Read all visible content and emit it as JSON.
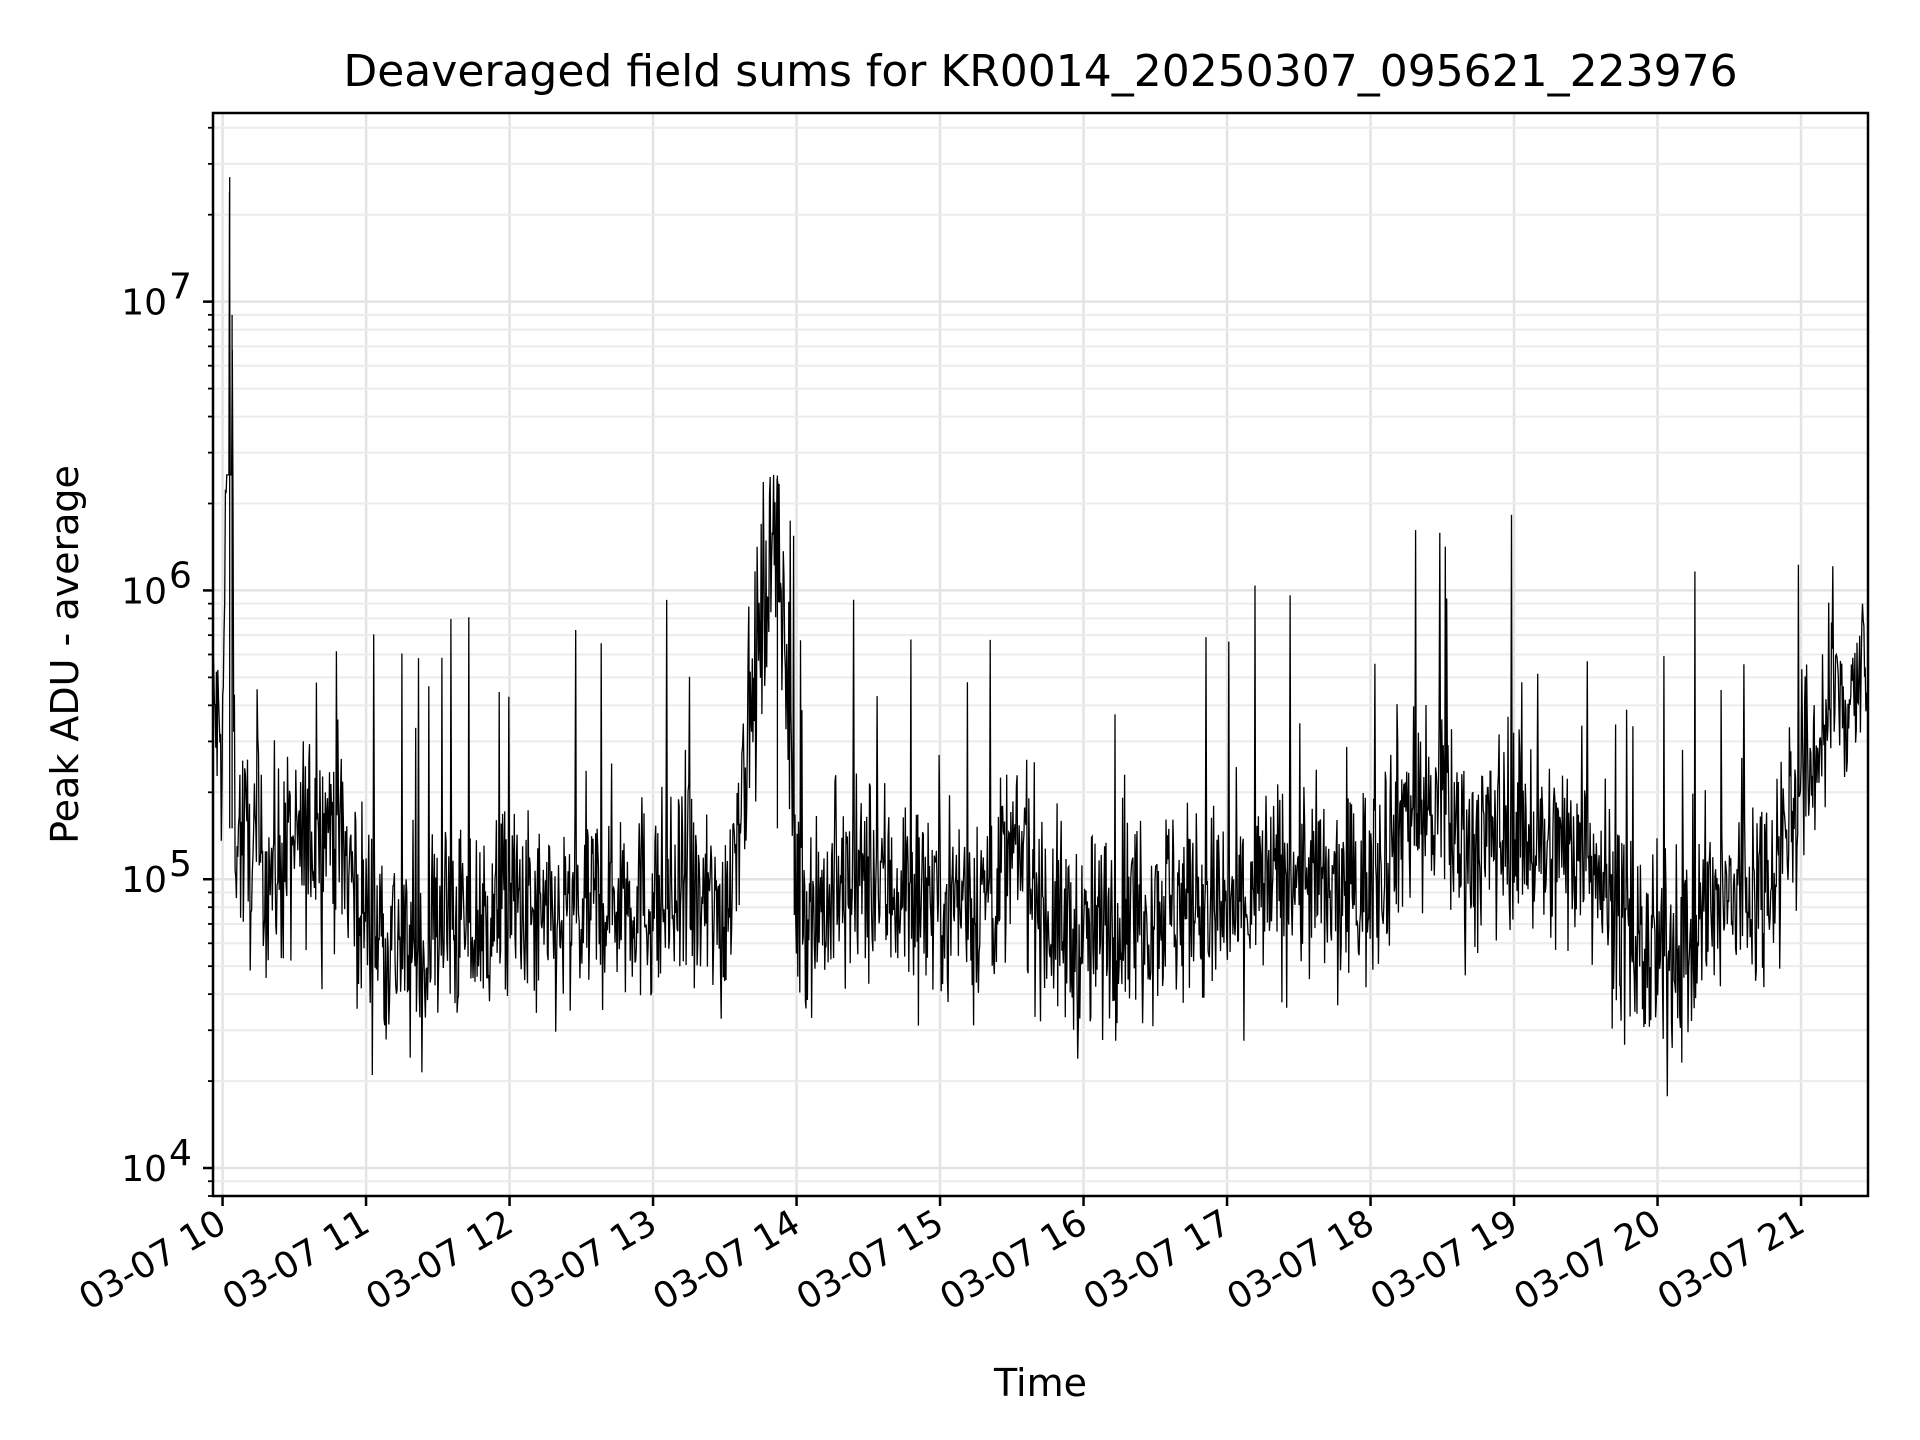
{
  "chart_data": {
    "type": "line",
    "title": "Deaveraged field sums for KR0014_20250307_095621_223976",
    "xlabel": "Time",
    "ylabel": "Peak ADU - average",
    "y_scale": "log",
    "ylim": [
      8000,
      45000000
    ],
    "xlim": [
      "2025-03-07 09:56",
      "2025-03-07 21:28"
    ],
    "x_ticks": [
      "2025-03-07 10:00",
      "2025-03-07 11:00",
      "2025-03-07 12:00",
      "2025-03-07 13:00",
      "2025-03-07 14:00",
      "2025-03-07 15:00",
      "2025-03-07 16:00",
      "2025-03-07 17:00",
      "2025-03-07 18:00",
      "2025-03-07 19:00",
      "2025-03-07 20:00",
      "2025-03-07 21:00"
    ],
    "x_tick_labels": [
      "03-07 10",
      "03-07 11",
      "03-07 12",
      "03-07 13",
      "03-07 14",
      "03-07 15",
      "03-07 16",
      "03-07 17",
      "03-07 18",
      "03-07 19",
      "03-07 20",
      "03-07 21"
    ],
    "y_ticks": [
      10000,
      100000,
      1000000,
      10000000
    ],
    "y_tick_labels": [
      {
        "base": "10",
        "exp": "4"
      },
      {
        "base": "10",
        "exp": "5"
      },
      {
        "base": "10",
        "exp": "6"
      },
      {
        "base": "10",
        "exp": "7"
      }
    ],
    "grid": true,
    "color": "#000000",
    "series": [
      {
        "x": [
          "2025-03-07 09:56",
          "2025-03-07 10:00",
          "2025-03-07 10:03",
          "2025-03-07 10:04",
          "2025-03-07 10:05",
          "2025-03-07 10:10",
          "2025-03-07 10:20",
          "2025-03-07 10:30",
          "2025-03-07 10:45",
          "2025-03-07 11:00",
          "2025-03-07 11:15",
          "2025-03-07 11:23",
          "2025-03-07 11:30",
          "2025-03-07 11:45",
          "2025-03-07 12:00",
          "2025-03-07 12:15",
          "2025-03-07 12:30",
          "2025-03-07 12:45",
          "2025-03-07 13:00",
          "2025-03-07 13:15",
          "2025-03-07 13:30",
          "2025-03-07 13:52",
          "2025-03-07 14:00",
          "2025-03-07 14:15",
          "2025-03-07 14:30",
          "2025-03-07 14:45",
          "2025-03-07 15:00",
          "2025-03-07 15:15",
          "2025-03-07 15:35",
          "2025-03-07 15:45",
          "2025-03-07 16:00",
          "2025-03-07 16:15",
          "2025-03-07 16:30",
          "2025-03-07 16:45",
          "2025-03-07 17:00",
          "2025-03-07 17:15",
          "2025-03-07 17:30",
          "2025-03-07 17:45",
          "2025-03-07 18:00",
          "2025-03-07 18:15",
          "2025-03-07 18:30",
          "2025-03-07 18:45",
          "2025-03-07 19:00",
          "2025-03-07 19:15",
          "2025-03-07 19:30",
          "2025-03-07 19:45",
          "2025-03-07 20:00",
          "2025-03-07 20:15",
          "2025-03-07 20:30",
          "2025-03-07 20:45",
          "2025-03-07 21:00",
          "2025-03-07 21:15",
          "2025-03-07 21:28"
        ],
        "y": [
          500000,
          300000,
          27000000,
          9000000,
          200000,
          150000,
          130000,
          150000,
          200000,
          90000,
          70000,
          60000,
          90000,
          80000,
          100000,
          80000,
          90000,
          110000,
          100000,
          100000,
          90000,
          2500000,
          100000,
          100000,
          120000,
          110000,
          110000,
          100000,
          150000,
          90000,
          70000,
          90000,
          100000,
          100000,
          90000,
          110000,
          130000,
          100000,
          120000,
          220000,
          200000,
          150000,
          200000,
          140000,
          180000,
          80000,
          60000,
          80000,
          100000,
          120000,
          250000,
          500000,
          600000
        ]
      }
    ]
  }
}
